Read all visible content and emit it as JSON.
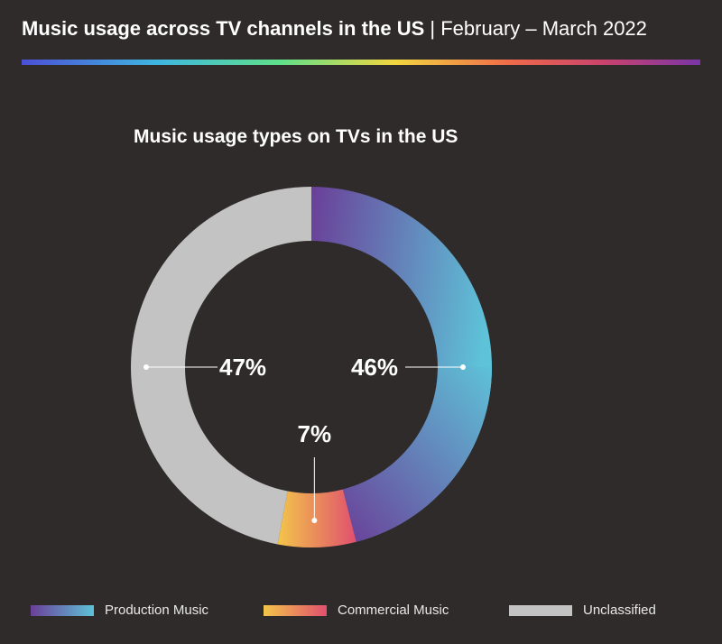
{
  "header": {
    "title_main": "Music usage across TV channels in the US",
    "separator": "|",
    "title_date": "February – March 2022"
  },
  "chart_data": {
    "type": "pie",
    "variant": "donut",
    "title": "Music usage types on TVs in the US",
    "categories": [
      "Production Music",
      "Commercial Music",
      "Unclassified"
    ],
    "values": [
      46,
      7,
      47
    ],
    "labels": [
      "46%",
      "7%",
      "47%"
    ],
    "colors": {
      "Production Music": [
        "#6a3f98",
        "#5ec2d8"
      ],
      "Commercial Music": [
        "#f3c54a",
        "#e0506e"
      ],
      "Unclassified": [
        "#c3c3c3",
        "#c3c3c3"
      ]
    },
    "legend_position": "bottom"
  },
  "legend": [
    {
      "label": "Production Music"
    },
    {
      "label": "Commercial Music"
    },
    {
      "label": "Unclassified"
    }
  ],
  "colors": {
    "background": "#2f2b2b",
    "text": "#ffffff"
  }
}
